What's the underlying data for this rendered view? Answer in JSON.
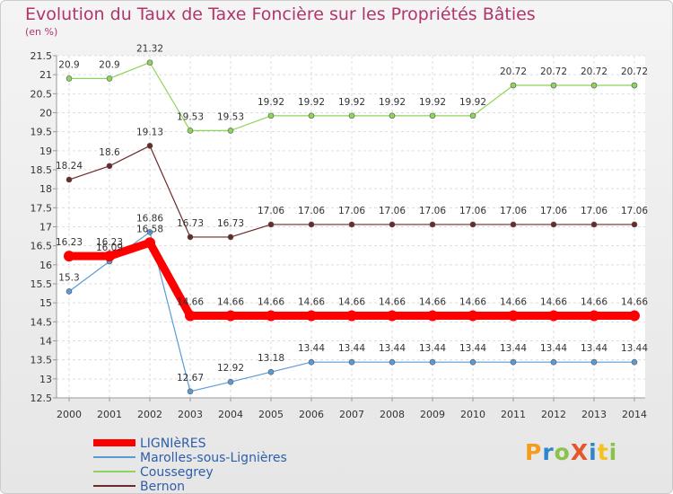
{
  "title": "Evolution du Taux de Taxe Foncière sur les Propriétés Bâties",
  "subtitle": "(en %)",
  "logo": {
    "text": "ProXiti",
    "letters": [
      "P",
      "r",
      "o",
      "X",
      "i",
      "t",
      "i"
    ],
    "colors": [
      "#f39c1e",
      "#2e86c8",
      "#8bc34a",
      "#e2572b",
      "#2e86c8",
      "#f3c21e",
      "#8bc34a"
    ]
  },
  "chart_data": {
    "type": "line",
    "title": "Evolution du Taux de Taxe Foncière sur les Propriétés Bâties",
    "ylabel": "(en %)",
    "xlabel": "",
    "ylim": [
      12.5,
      21.5
    ],
    "yticks": [
      "12.5",
      "13",
      "13.5",
      "14",
      "14.5",
      "15",
      "15.5",
      "16",
      "16.5",
      "17",
      "17.5",
      "18",
      "18.5",
      "19",
      "19.5",
      "20",
      "20.5",
      "21",
      "21.5"
    ],
    "categories": [
      "2000",
      "2001",
      "2002",
      "2003",
      "2004",
      "2005",
      "2006",
      "2007",
      "2008",
      "2009",
      "2010",
      "2011",
      "2012",
      "2013",
      "2014"
    ],
    "series": [
      {
        "name": "LIGNIèRES",
        "color": "#ff0000",
        "width": 9,
        "values": [
          16.23,
          16.23,
          16.58,
          14.66,
          14.66,
          14.66,
          14.66,
          14.66,
          14.66,
          14.66,
          14.66,
          14.66,
          14.66,
          14.66,
          14.66
        ],
        "labels": [
          "16.23",
          "16.23",
          "16.58",
          "14.66",
          "14.66",
          "14.66",
          "14.66",
          "14.66",
          "14.66",
          "14.66",
          "14.66",
          "14.66",
          "14.66",
          "14.66",
          "14.66"
        ]
      },
      {
        "name": "Marolles-sous-Lignières",
        "color": "#5b9bd5",
        "width": 1.2,
        "values": [
          15.3,
          16.09,
          16.86,
          12.67,
          12.92,
          13.18,
          13.44,
          13.44,
          13.44,
          13.44,
          13.44,
          13.44,
          13.44,
          13.44,
          13.44
        ],
        "labels": [
          "15.3",
          "16.09",
          "16.86",
          "12.67",
          "12.92",
          "13.18",
          "13.44",
          "13.44",
          "13.44",
          "13.44",
          "13.44",
          "13.44",
          "13.44",
          "13.44",
          "13.44"
        ]
      },
      {
        "name": "Coussegrey",
        "color": "#8fd45a",
        "width": 1.2,
        "values": [
          20.9,
          20.9,
          21.32,
          19.53,
          19.53,
          19.92,
          19.92,
          19.92,
          19.92,
          19.92,
          19.92,
          20.72,
          20.72,
          20.72,
          20.72
        ],
        "labels": [
          "20.9",
          "20.9",
          "21.32",
          "19.53",
          "19.53",
          "19.92",
          "19.92",
          "19.92",
          "19.92",
          "19.92",
          "19.92",
          "20.72",
          "20.72",
          "20.72",
          "20.72"
        ]
      },
      {
        "name": "Bernon",
        "color": "#6b2a2a",
        "width": 1.2,
        "values": [
          18.24,
          18.6,
          19.13,
          16.73,
          16.73,
          17.06,
          17.06,
          17.06,
          17.06,
          17.06,
          17.06,
          17.06,
          17.06,
          17.06,
          17.06
        ],
        "labels": [
          "18.24",
          "18.6",
          "19.13",
          "16.73",
          "16.73",
          "17.06",
          "17.06",
          "17.06",
          "17.06",
          "17.06",
          "17.06",
          "17.06",
          "17.06",
          "17.06",
          "17.06"
        ]
      }
    ],
    "legend": "bottom-left"
  }
}
